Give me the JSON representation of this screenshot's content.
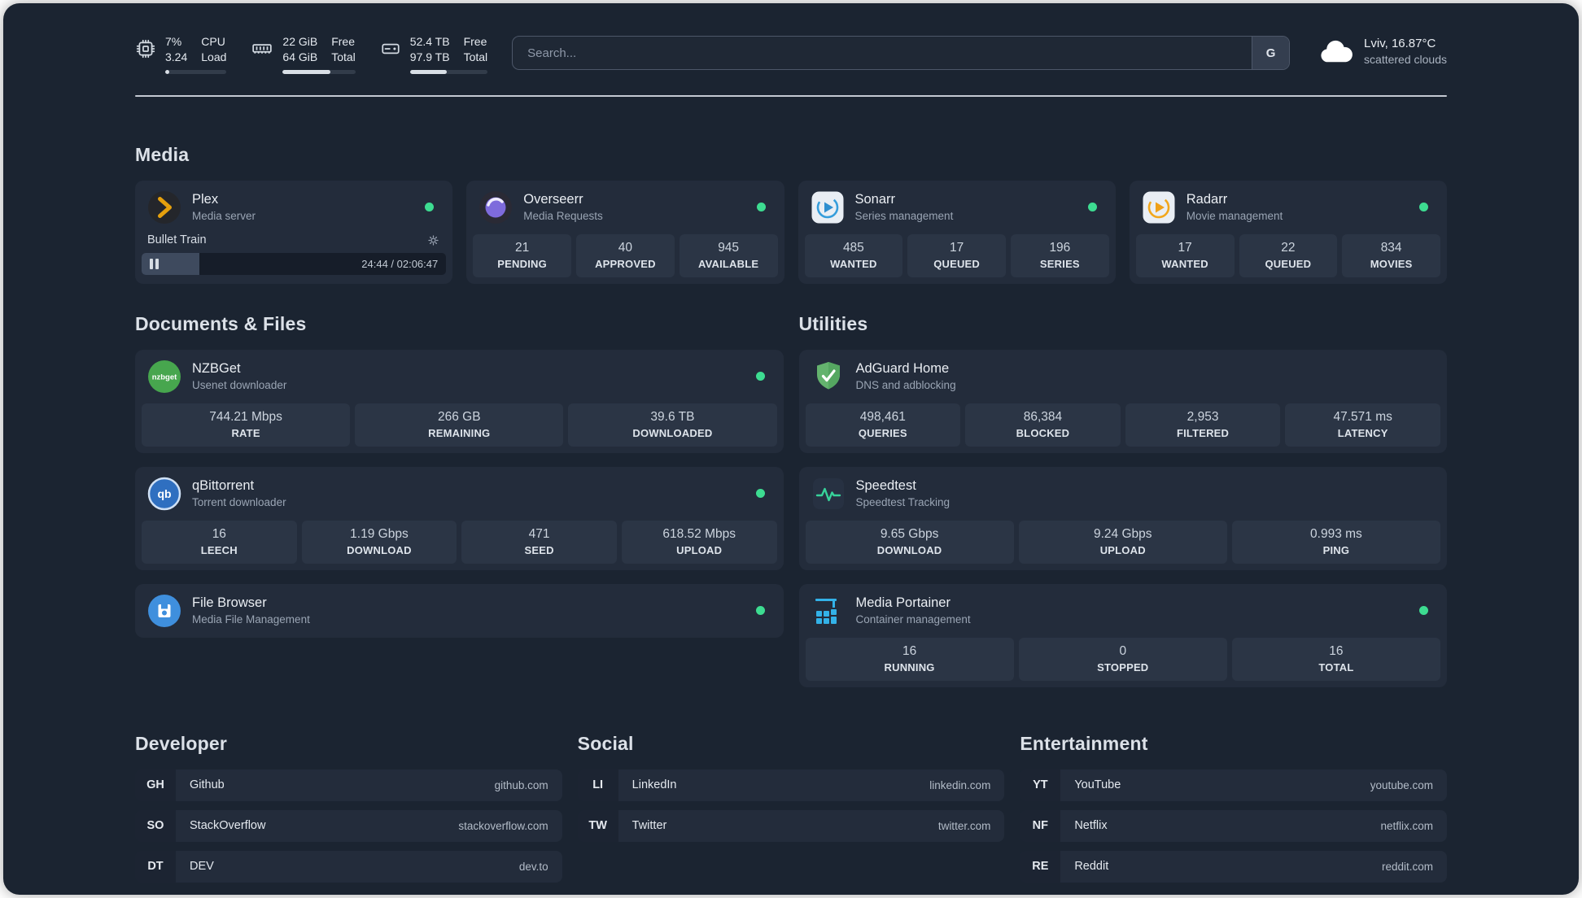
{
  "colors": {
    "status_online": "#3ddc91",
    "plex_gold": "#e5a00d",
    "background": "#1b2431",
    "card": "#232c3b",
    "stat_tile": "#2b3545"
  },
  "icons": {
    "topbar": [
      "cpu-icon",
      "ram-icon",
      "disk-icon",
      "cloud-icon"
    ],
    "services": [
      "plex-icon",
      "overseerr-icon",
      "sonarr-icon",
      "radarr-icon",
      "nzbget-icon",
      "qbittorrent-icon",
      "filebrowser-icon",
      "adguard-icon",
      "speedtest-icon",
      "portainer-icon"
    ],
    "misc": [
      "gear-icon",
      "pause-icon",
      "status-dot"
    ]
  },
  "topbar": {
    "cpu": {
      "percent": "7%",
      "load": "3.24",
      "label_top": "CPU",
      "label_bottom": "Load",
      "bar_percent": 7
    },
    "memory": {
      "free": "22 GiB",
      "total": "64 GiB",
      "label_top": "Free",
      "label_bottom": "Total",
      "bar_percent": 66
    },
    "disk": {
      "free": "52.4 TB",
      "total": "97.9 TB",
      "label_top": "Free",
      "label_bottom": "Total",
      "bar_percent": 47
    },
    "search": {
      "placeholder": "Search...",
      "provider": "G"
    },
    "weather": {
      "location": "Lviv, 16.87°C",
      "condition": "scattered clouds"
    }
  },
  "media": {
    "title": "Media",
    "plex": {
      "name": "Plex",
      "subtitle": "Media server",
      "now_playing": "Bullet Train",
      "time": "24:44 / 02:06:47",
      "progress_percent": 19
    },
    "overseerr": {
      "name": "Overseerr",
      "subtitle": "Media Requests",
      "stats": [
        {
          "value": "21",
          "label": "PENDING"
        },
        {
          "value": "40",
          "label": "APPROVED"
        },
        {
          "value": "945",
          "label": "AVAILABLE"
        }
      ]
    },
    "sonarr": {
      "name": "Sonarr",
      "subtitle": "Series management",
      "stats": [
        {
          "value": "485",
          "label": "WANTED"
        },
        {
          "value": "17",
          "label": "QUEUED"
        },
        {
          "value": "196",
          "label": "SERIES"
        }
      ]
    },
    "radarr": {
      "name": "Radarr",
      "subtitle": "Movie management",
      "stats": [
        {
          "value": "17",
          "label": "WANTED"
        },
        {
          "value": "22",
          "label": "QUEUED"
        },
        {
          "value": "834",
          "label": "MOVIES"
        }
      ]
    }
  },
  "documents": {
    "title": "Documents & Files",
    "nzbget": {
      "name": "NZBGet",
      "subtitle": "Usenet downloader",
      "stats": [
        {
          "value": "744.21 Mbps",
          "label": "RATE"
        },
        {
          "value": "266 GB",
          "label": "REMAINING"
        },
        {
          "value": "39.6 TB",
          "label": "DOWNLOADED"
        }
      ]
    },
    "qbittorrent": {
      "name": "qBittorrent",
      "subtitle": "Torrent downloader",
      "stats": [
        {
          "value": "16",
          "label": "LEECH"
        },
        {
          "value": "1.19 Gbps",
          "label": "DOWNLOAD"
        },
        {
          "value": "471",
          "label": "SEED"
        },
        {
          "value": "618.52 Mbps",
          "label": "UPLOAD"
        }
      ]
    },
    "filebrowser": {
      "name": "File Browser",
      "subtitle": "Media File Management"
    }
  },
  "utilities": {
    "title": "Utilities",
    "adguard": {
      "name": "AdGuard Home",
      "subtitle": "DNS and adblocking",
      "stats": [
        {
          "value": "498,461",
          "label": "QUERIES"
        },
        {
          "value": "86,384",
          "label": "BLOCKED"
        },
        {
          "value": "2,953",
          "label": "FILTERED"
        },
        {
          "value": "47.571 ms",
          "label": "LATENCY"
        }
      ]
    },
    "speedtest": {
      "name": "Speedtest",
      "subtitle": "Speedtest Tracking",
      "stats": [
        {
          "value": "9.65 Gbps",
          "label": "DOWNLOAD"
        },
        {
          "value": "9.24 Gbps",
          "label": "UPLOAD"
        },
        {
          "value": "0.993 ms",
          "label": "PING"
        }
      ]
    },
    "portainer": {
      "name": "Media Portainer",
      "subtitle": "Container management",
      "stats": [
        {
          "value": "16",
          "label": "RUNNING"
        },
        {
          "value": "0",
          "label": "STOPPED"
        },
        {
          "value": "16",
          "label": "TOTAL"
        }
      ]
    }
  },
  "bookmarks": {
    "developer": {
      "title": "Developer",
      "links": [
        {
          "abbr": "GH",
          "name": "Github",
          "domain": "github.com"
        },
        {
          "abbr": "SO",
          "name": "StackOverflow",
          "domain": "stackoverflow.com"
        },
        {
          "abbr": "DT",
          "name": "DEV",
          "domain": "dev.to"
        }
      ]
    },
    "social": {
      "title": "Social",
      "links": [
        {
          "abbr": "LI",
          "name": "LinkedIn",
          "domain": "linkedin.com"
        },
        {
          "abbr": "TW",
          "name": "Twitter",
          "domain": "twitter.com"
        }
      ]
    },
    "entertainment": {
      "title": "Entertainment",
      "links": [
        {
          "abbr": "YT",
          "name": "YouTube",
          "domain": "youtube.com"
        },
        {
          "abbr": "NF",
          "name": "Netflix",
          "domain": "netflix.com"
        },
        {
          "abbr": "RE",
          "name": "Reddit",
          "domain": "reddit.com"
        }
      ]
    }
  }
}
